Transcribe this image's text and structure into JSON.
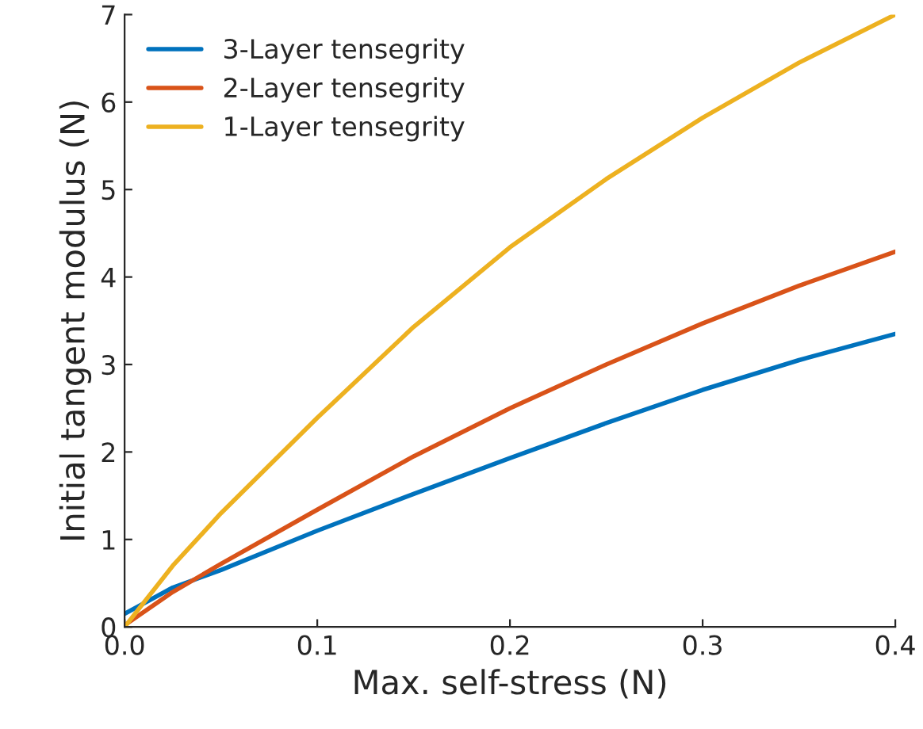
{
  "chart_data": {
    "type": "line",
    "xlabel": "Max. self-stress (N)",
    "ylabel": "Initial tangent modulus (N)",
    "x": [
      0,
      0.025,
      0.05,
      0.1,
      0.15,
      0.2,
      0.25,
      0.3,
      0.35,
      0.4
    ],
    "series": [
      {
        "name": "3-Layer tensegrity",
        "color": "#0072bd",
        "values": [
          0.15,
          0.45,
          0.65,
          1.1,
          1.52,
          1.93,
          2.33,
          2.71,
          3.05,
          3.35
        ]
      },
      {
        "name": "2-Layer tensegrity",
        "color": "#d95319",
        "values": [
          0.02,
          0.4,
          0.72,
          1.34,
          1.95,
          2.5,
          3.0,
          3.47,
          3.9,
          4.29
        ]
      },
      {
        "name": "1-Layer tensegrity",
        "color": "#edb120",
        "values": [
          0.0,
          0.7,
          1.3,
          2.39,
          3.43,
          4.34,
          5.12,
          5.82,
          6.45,
          7.0
        ]
      }
    ],
    "xlim": [
      0,
      0.4
    ],
    "ylim": [
      0,
      7
    ],
    "xticks": [
      {
        "value": 0,
        "label": "0.0"
      },
      0.1,
      0.2,
      0.3,
      0.4
    ],
    "yticks": [
      0,
      1,
      2,
      3,
      4,
      5,
      6,
      7
    ],
    "legend": "top left",
    "grid": false,
    "line_style": "solid",
    "marker": "none"
  }
}
